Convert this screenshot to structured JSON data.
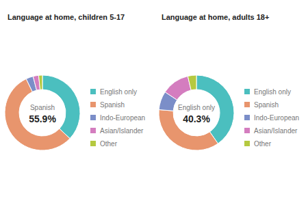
{
  "chart_data": [
    {
      "type": "pie",
      "title": "Language at home, children 5-17",
      "annotations": [
        "Spanish",
        "55.9%"
      ],
      "categories": [
        "English only",
        "Spanish",
        "Indo-European",
        "Asian/Islander",
        "Other"
      ],
      "values": [
        37.0,
        55.9,
        3.1,
        2.4,
        1.6
      ],
      "colors": [
        "#4bbfbf",
        "#e8956d",
        "#7b8ec8",
        "#d47dbf",
        "#b5c940"
      ],
      "legend": "right"
    },
    {
      "type": "pie",
      "title": "Language at home, adults 18+",
      "annotations": [
        "English only",
        "40.3%"
      ],
      "categories": [
        "English only",
        "Spanish",
        "Indo-European",
        "Asian/Islander",
        "Other"
      ],
      "values": [
        40.3,
        36.0,
        8.0,
        12.0,
        3.7
      ],
      "colors": [
        "#4bbfbf",
        "#e8956d",
        "#7b8ec8",
        "#d47dbf",
        "#b5c940"
      ],
      "legend": "right"
    }
  ]
}
